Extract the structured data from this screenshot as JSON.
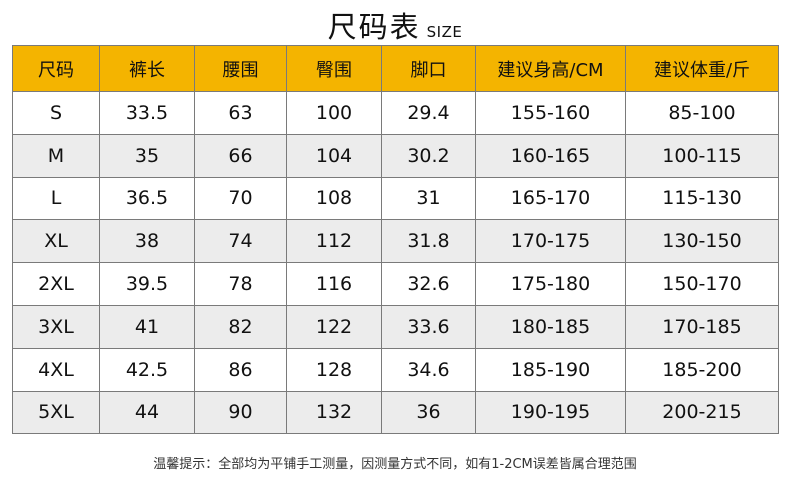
{
  "header": {
    "title": "尺码表",
    "subtitle": "SIZE"
  },
  "table": {
    "columns": [
      "尺码",
      "裤长",
      "腰围",
      "臀围",
      "脚口",
      "建议身高/CM",
      "建议体重/斤"
    ],
    "rows": [
      [
        "S",
        "33.5",
        "63",
        "100",
        "29.4",
        "155-160",
        "85-100"
      ],
      [
        "M",
        "35",
        "66",
        "104",
        "30.2",
        "160-165",
        "100-115"
      ],
      [
        "L",
        "36.5",
        "70",
        "108",
        "31",
        "165-170",
        "115-130"
      ],
      [
        "XL",
        "38",
        "74",
        "112",
        "31.8",
        "170-175",
        "130-150"
      ],
      [
        "2XL",
        "39.5",
        "78",
        "116",
        "32.6",
        "175-180",
        "150-170"
      ],
      [
        "3XL",
        "41",
        "82",
        "122",
        "33.6",
        "180-185",
        "170-185"
      ],
      [
        "4XL",
        "42.5",
        "86",
        "128",
        "34.6",
        "185-190",
        "185-200"
      ],
      [
        "5XL",
        "44",
        "90",
        "132",
        "36",
        "190-195",
        "200-215"
      ]
    ]
  },
  "footer": {
    "note": "温馨提示：全部均为平铺手工测量，因测量方式不同，如有1-2CM误差皆属合理范围"
  },
  "colors": {
    "header_bg": "#f4b400",
    "stripe_bg": "#ececec",
    "border": "#7a7a7a"
  }
}
